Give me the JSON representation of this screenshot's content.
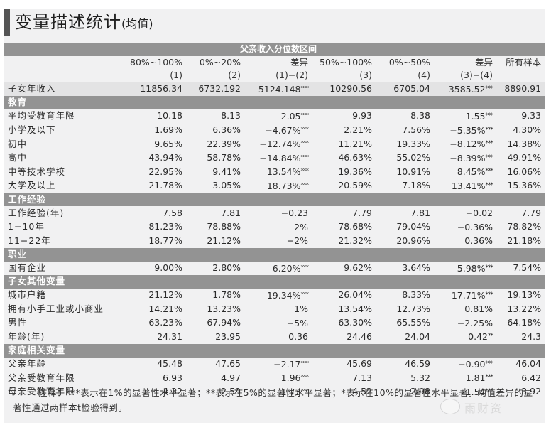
{
  "title": {
    "main": "变量描述统计",
    "sub": "(均值)"
  },
  "band_title": "父亲收入分位数区间",
  "columns": [
    {
      "label": "80%~100%",
      "index": "(1)"
    },
    {
      "label": "0%~20%",
      "index": "(2)"
    },
    {
      "label": "差异",
      "index": "(1)−(2)"
    },
    {
      "label": "50%~100%",
      "index": "(3)"
    },
    {
      "label": "0%~50%",
      "index": "(4)"
    },
    {
      "label": "差异",
      "index": "(3)−(4)"
    },
    {
      "label": "所有样本",
      "index": ""
    }
  ],
  "income_row": {
    "label": "子女年收入",
    "values": [
      "11856.34",
      "6732.192",
      "5124.148",
      "10290.56",
      "6705.04",
      "3585.52",
      "8890.91"
    ],
    "stars": [
      "",
      "",
      "***",
      "",
      "",
      "***",
      ""
    ]
  },
  "sections": [
    {
      "title": "教育",
      "rows": [
        {
          "label": "平均受教育年限",
          "values": [
            "10.18",
            "8.13",
            "2.05",
            "9.93",
            "8.38",
            "1.55",
            "9.33"
          ],
          "stars": [
            "",
            "",
            "***",
            "",
            "",
            "***",
            ""
          ]
        },
        {
          "label": "小学及以下",
          "values": [
            "1.69%",
            "6.36%",
            "−4.67%",
            "2.21%",
            "7.56%",
            "−5.35%",
            "4.30%"
          ],
          "stars": [
            "",
            "",
            "***",
            "",
            "",
            "***",
            ""
          ]
        },
        {
          "label": "初中",
          "values": [
            "9.65%",
            "22.39%",
            "−12.74%",
            "11.21%",
            "19.33%",
            "−8.12%",
            "14.38%"
          ],
          "stars": [
            "",
            "",
            "***",
            "",
            "",
            "***",
            ""
          ]
        },
        {
          "label": "高中",
          "values": [
            "43.94%",
            "58.78%",
            "−14.84%",
            "46.63%",
            "55.02%",
            "−8.39%",
            "49.91%"
          ],
          "stars": [
            "",
            "",
            "***",
            "",
            "",
            "***",
            ""
          ]
        },
        {
          "label": "中等技术学校",
          "values": [
            "22.95%",
            "9.41%",
            "13.54%",
            "19.36%",
            "10.91%",
            "8.45%",
            "16.06%"
          ],
          "stars": [
            "",
            "",
            "***",
            "",
            "",
            "***",
            ""
          ]
        },
        {
          "label": "大学及以上",
          "values": [
            "21.78%",
            "3.05%",
            "18.73%",
            "20.59%",
            "7.18%",
            "13.41%",
            "15.36%"
          ],
          "stars": [
            "",
            "",
            "***",
            "",
            "",
            "***",
            ""
          ]
        }
      ]
    },
    {
      "title": "工作经验",
      "rows": [
        {
          "label": "工作经验(年)",
          "values": [
            "7.58",
            "7.81",
            "−0.23",
            "7.79",
            "7.81",
            "−0.02",
            "7.79"
          ],
          "stars": [
            "",
            "",
            "",
            "",
            "",
            "",
            ""
          ]
        },
        {
          "label": "1−10年",
          "values": [
            "81.23%",
            "78.88%",
            "2%",
            "78.68%",
            "79.04%",
            "−0.36%",
            "78.82%"
          ],
          "stars": [
            "",
            "",
            "",
            "",
            "",
            "",
            ""
          ]
        },
        {
          "label": "11−22年",
          "values": [
            "18.77%",
            "21.12%",
            "−2%",
            "21.32%",
            "20.96%",
            "0.36%",
            "21.18%"
          ],
          "stars": [
            "",
            "",
            "",
            "",
            "",
            "",
            ""
          ]
        }
      ]
    },
    {
      "title": "职业",
      "rows": [
        {
          "label": "国有企业",
          "values": [
            "9.00%",
            "2.80%",
            "6.20%",
            "9.62%",
            "3.64%",
            "5.98%",
            "7.54%"
          ],
          "stars": [
            "",
            "",
            "***",
            "",
            "",
            "***",
            ""
          ]
        }
      ]
    },
    {
      "title": "子女其他变量",
      "rows": [
        {
          "label": "城市户籍",
          "values": [
            "21.12%",
            "1.78%",
            "19.34%",
            "26.04%",
            "8.33%",
            "17.71%",
            "19.13%"
          ],
          "stars": [
            "",
            "",
            "***",
            "",
            "",
            "***",
            ""
          ]
        },
        {
          "label": "拥有小手工业或小商业",
          "values": [
            "14.21%",
            "13.23%",
            "1%",
            "13.54%",
            "12.73%",
            "0.81%",
            "13.22%"
          ],
          "stars": [
            "",
            "",
            "",
            "",
            "",
            "",
            ""
          ]
        },
        {
          "label": "男性",
          "values": [
            "63.23%",
            "67.94%",
            "−5%",
            "63.30%",
            "65.55%",
            "−2.25%",
            "64.18%"
          ],
          "stars": [
            "",
            "",
            "",
            "",
            "",
            "",
            ""
          ]
        },
        {
          "label": "年龄(年)",
          "values": [
            "24.31",
            "23.95",
            "0.36",
            "24.46",
            "24.04",
            "0.42",
            "24.3"
          ],
          "stars": [
            "",
            "",
            "",
            "",
            "",
            "**",
            ""
          ]
        }
      ]
    },
    {
      "title": "家庭相关变量",
      "rows": [
        {
          "label": "父亲年龄",
          "values": [
            "45.48",
            "47.65",
            "−2.17",
            "45.69",
            "46.59",
            "−0.90",
            "46.04"
          ],
          "stars": [
            "",
            "",
            "***",
            "",
            "",
            "***",
            ""
          ]
        },
        {
          "label": "父亲受教育年限",
          "values": [
            "6.93",
            "4.97",
            "1.96",
            "7.13",
            "5.32",
            "1.81",
            "6.42"
          ],
          "stars": [
            "",
            "",
            "***",
            "",
            "",
            "***",
            ""
          ]
        },
        {
          "label": "母亲受教育年限",
          "values": [
            "4.32",
            "2.59",
            "1.73",
            "4.52",
            "2.98",
            "1.54",
            "3.92"
          ],
          "stars": [
            "",
            "",
            "***",
            "",
            "",
            "***",
            ""
          ]
        }
      ]
    }
  ],
  "note": "注释：***表示在1%的显著性水平显著；**表示在5%的显著性水平显著；*表示在10%的显著性水平显著。均值差异的显著性通过两样本t检验得到。",
  "watermark": {
    "icon": "wechat-bubble-icon",
    "text": "雨财资"
  },
  "colors": {
    "band": "#939393",
    "background": "#f1f1f2",
    "income_row": "#e3e3e4",
    "title_accent": "#555555"
  }
}
